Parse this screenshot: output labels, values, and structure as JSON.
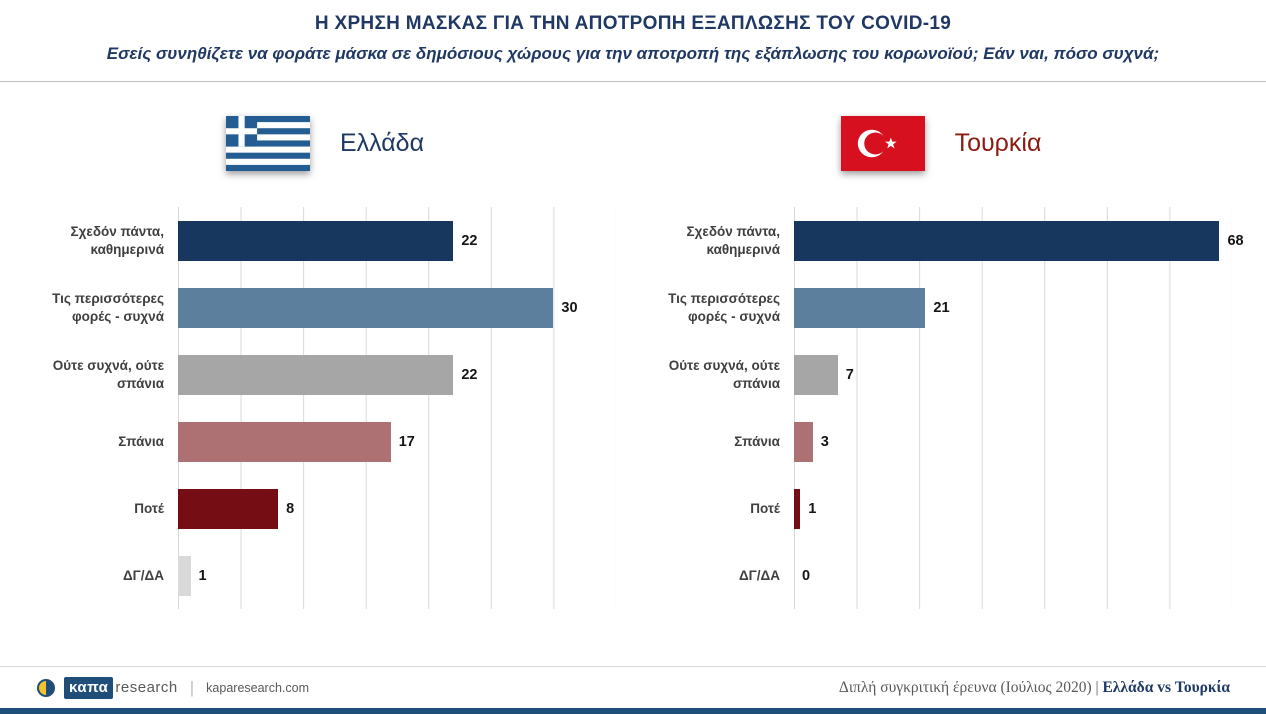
{
  "header": {
    "title": "Η ΧΡΗΣΗ ΜΑΣΚΑΣ ΓΙΑ ΤΗΝ ΑΠΟΤΡΟΠΗ ΕΞΑΠΛΩΣΗΣ ΤΟΥ COVID-19",
    "subtitle": "Εσείς συνηθίζετε να φοράτε μάσκα σε δημόσιους χώρους για την αποτροπή της εξάπλωσης του κορωνοϊού; Εάν ναι, πόσο συχνά;"
  },
  "chart_data": {
    "type": "bar",
    "orientation": "horizontal",
    "grid": true,
    "categories": [
      "Σχεδόν πάντα, καθημερινά",
      "Τις περισσότερες φορές - συχνά",
      "Ούτε συχνά, ούτε σπάνια",
      "Σπάνια",
      "Ποτέ",
      "ΔΓ/ΔΑ"
    ],
    "series": [
      {
        "name": "Ελλάδα",
        "values": [
          22,
          30,
          22,
          17,
          8,
          1
        ],
        "axis_max": 35
      },
      {
        "name": "Τουρκία",
        "values": [
          68,
          21,
          7,
          3,
          1,
          0
        ],
        "axis_max": 70
      }
    ],
    "bar_colors": [
      "#17375E",
      "#5C7F9E",
      "#A6A6A6",
      "#AE7173",
      "#740E14",
      "#D9D9D9"
    ],
    "grid_color": "#D9D9D9",
    "value_labels": true
  },
  "panels": [
    {
      "label": "Ελλάδα",
      "label_color": "#1F3864",
      "flag": "greece-flag"
    },
    {
      "label": "Τουρκία",
      "label_color": "#8B1A10",
      "flag": "turkey-flag"
    }
  ],
  "footer": {
    "brand_kapa": "καπα",
    "brand_research": "research",
    "separator": "|",
    "website": "kaparesearch.com",
    "note_plain": "Διπλή συγκριτική έρευνα (Ιούλιος 2020) | ",
    "note_highlight": "Ελλάδα vs Τουρκία"
  }
}
